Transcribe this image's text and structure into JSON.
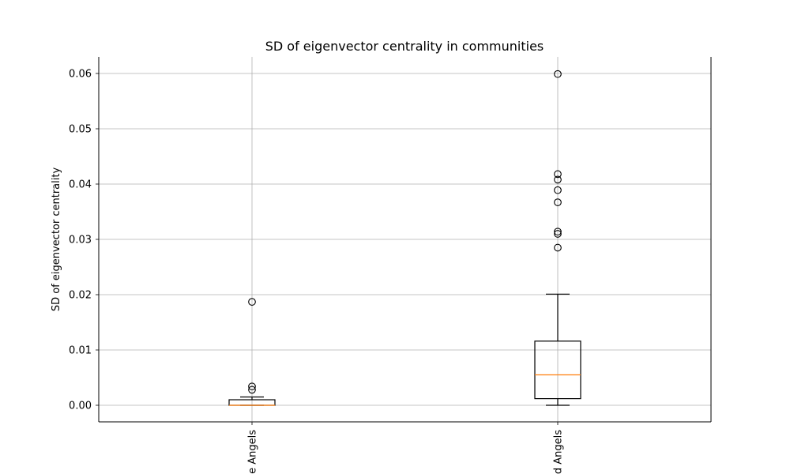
{
  "chart_data": {
    "type": "box",
    "title": "SD of eigenvector centrality in communities",
    "ylabel": "SD of eigenvector centrality",
    "xlabel": "",
    "ylim": [
      -0.003,
      0.063
    ],
    "yticks": [
      0.0,
      0.01,
      0.02,
      0.03,
      0.04,
      0.05,
      0.06
    ],
    "ytick_labels": [
      "0.00",
      "0.01",
      "0.02",
      "0.03",
      "0.04",
      "0.05",
      "0.06"
    ],
    "grid": true,
    "categories": [
      "e Angels",
      "d Angels"
    ],
    "boxes": [
      {
        "whisker_low": 0.0,
        "q1": 0.0,
        "median": 0.0,
        "q3": 0.001,
        "whisker_high": 0.0015,
        "outliers": [
          0.0187,
          0.0034,
          0.0028
        ]
      },
      {
        "whisker_low": 0.0,
        "q1": 0.0012,
        "median": 0.0055,
        "q3": 0.0116,
        "whisker_high": 0.0201,
        "outliers": [
          0.0599,
          0.0418,
          0.0408,
          0.0389,
          0.0367,
          0.0314,
          0.031,
          0.0285
        ]
      }
    ],
    "colors": {
      "box": "#000000",
      "median": "#ff7f0e",
      "grid": "#b0b0b0"
    }
  }
}
